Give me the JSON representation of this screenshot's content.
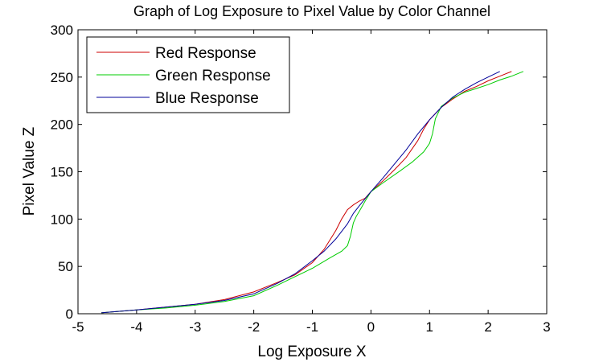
{
  "chart_data": {
    "type": "line",
    "title": "Graph of Log Exposure to Pixel Value by Color Channel",
    "xlabel": "Log Exposure X",
    "ylabel": "Pixel Value Z",
    "xlim": [
      -5,
      3
    ],
    "ylim": [
      0,
      300
    ],
    "xticks": [
      -5,
      -4,
      -3,
      -2,
      -1,
      0,
      1,
      2,
      3
    ],
    "yticks": [
      0,
      50,
      100,
      150,
      200,
      250,
      300
    ],
    "grid": false,
    "legend_position": "top-left",
    "series": [
      {
        "name": "Red Response",
        "color": "#cc0000",
        "x": [
          -4.6,
          -4.0,
          -3.5,
          -3.0,
          -2.5,
          -2.0,
          -1.6,
          -1.3,
          -1.0,
          -0.8,
          -0.6,
          -0.5,
          -0.4,
          -0.3,
          -0.2,
          -0.1,
          0.0,
          0.2,
          0.4,
          0.6,
          0.8,
          0.9,
          1.0,
          1.2,
          1.4,
          1.6,
          1.8,
          2.0,
          2.2,
          2.4
        ],
        "y": [
          1,
          4,
          7,
          10,
          15,
          23,
          33,
          41,
          54,
          68,
          88,
          100,
          110,
          115,
          119,
          122,
          129,
          140,
          152,
          165,
          183,
          195,
          205,
          218,
          227,
          235,
          240,
          246,
          251,
          256
        ]
      },
      {
        "name": "Green Response",
        "color": "#00cc00",
        "x": [
          -4.6,
          -4.0,
          -3.5,
          -3.0,
          -2.5,
          -2.0,
          -1.6,
          -1.3,
          -1.0,
          -0.7,
          -0.5,
          -0.4,
          -0.35,
          -0.3,
          -0.25,
          -0.2,
          -0.1,
          0.0,
          0.2,
          0.5,
          0.7,
          0.9,
          1.0,
          1.05,
          1.1,
          1.2,
          1.4,
          1.6,
          1.8,
          2.0,
          2.2,
          2.4,
          2.6
        ],
        "y": [
          1,
          4,
          6,
          9,
          13,
          19,
          30,
          39,
          48,
          59,
          66,
          72,
          82,
          96,
          103,
          108,
          119,
          129,
          138,
          151,
          160,
          171,
          180,
          190,
          206,
          219,
          228,
          234,
          238,
          242,
          247,
          251,
          256
        ]
      },
      {
        "name": "Blue Response",
        "color": "#000099",
        "x": [
          -4.6,
          -4.0,
          -3.5,
          -3.0,
          -2.5,
          -2.0,
          -1.6,
          -1.3,
          -1.0,
          -0.8,
          -0.6,
          -0.4,
          -0.3,
          -0.2,
          0.0,
          0.2,
          0.4,
          0.6,
          0.8,
          1.0,
          1.2,
          1.4,
          1.6,
          1.8,
          2.0,
          2.2
        ],
        "y": [
          1,
          4,
          7,
          10,
          14,
          21,
          32,
          42,
          56,
          66,
          79,
          95,
          106,
          114,
          129,
          143,
          158,
          173,
          190,
          205,
          218,
          229,
          237,
          244,
          250,
          256
        ]
      }
    ]
  }
}
